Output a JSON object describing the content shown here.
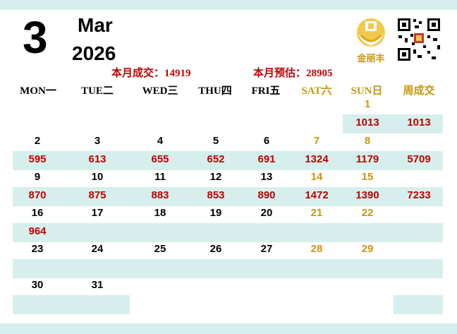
{
  "header": {
    "day_number": "3",
    "month_name": "Mar",
    "year": "2026",
    "month_deals": "本月成交：14919",
    "month_estimate": "本月预估：28905",
    "logo_text": "金丽丰"
  },
  "weekdays": [
    "MON一",
    "TUE二",
    "WED三",
    "THU四",
    "FRI五",
    "SAT六",
    "SUN日",
    "周成交"
  ],
  "colors": {
    "band": "#d6efec",
    "value_red": "#c00000",
    "weekend_gold": "#c8960c"
  },
  "weeks": [
    {
      "days": [
        "",
        "",
        "",
        "",
        "",
        "",
        "1"
      ],
      "values": [
        "",
        "",
        "",
        "",
        "",
        "",
        "1013"
      ],
      "total": "1013"
    },
    {
      "days": [
        "2",
        "3",
        "4",
        "5",
        "6",
        "7",
        "8"
      ],
      "values": [
        "595",
        "613",
        "655",
        "652",
        "691",
        "1324",
        "1179"
      ],
      "total": "5709"
    },
    {
      "days": [
        "9",
        "10",
        "11",
        "12",
        "13",
        "14",
        "15"
      ],
      "values": [
        "870",
        "875",
        "883",
        "853",
        "890",
        "1472",
        "1390"
      ],
      "total": "7233"
    },
    {
      "days": [
        "16",
        "17",
        "18",
        "19",
        "20",
        "21",
        "22"
      ],
      "values": [
        "964",
        "",
        "",
        "",
        "",
        "",
        ""
      ],
      "total": ""
    },
    {
      "days": [
        "23",
        "24",
        "25",
        "26",
        "27",
        "28",
        "29"
      ],
      "values": [
        "",
        "",
        "",
        "",
        "",
        "",
        ""
      ],
      "total": ""
    },
    {
      "days": [
        "30",
        "31",
        "",
        "",
        "",
        "",
        ""
      ],
      "values": [
        "",
        "",
        "",
        "",
        "",
        "",
        ""
      ],
      "total": ""
    }
  ]
}
